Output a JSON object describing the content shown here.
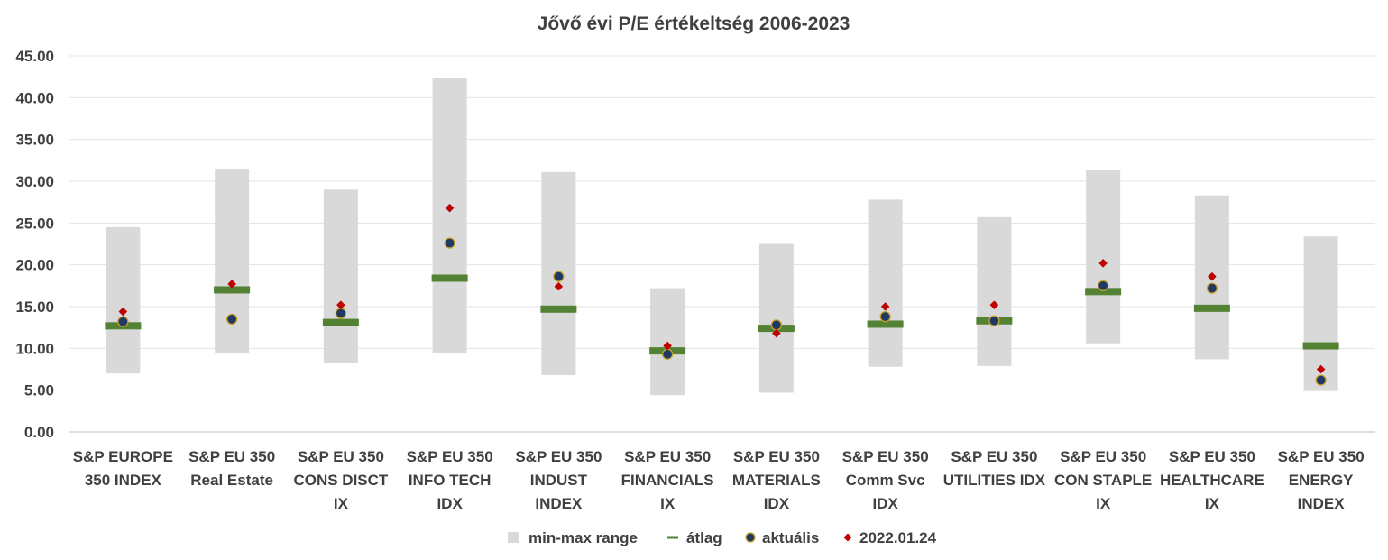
{
  "chart_data": {
    "type": "range-dot",
    "title": "Jővő évi P/E értékeltség 2006-2023",
    "ylim": [
      0,
      45
    ],
    "ytick_step": 5,
    "ytick_labels": [
      "0.00",
      "5.00",
      "10.00",
      "15.00",
      "20.00",
      "25.00",
      "30.00",
      "35.00",
      "40.00",
      "45.00"
    ],
    "grid": true,
    "legend_position": "bottom",
    "categories": [
      [
        "S&P EUROPE",
        "350 INDEX"
      ],
      [
        "S&P EU 350",
        "Real Estate"
      ],
      [
        "S&P EU 350",
        "CONS DISCT",
        "IX"
      ],
      [
        "S&P EU 350",
        "INFO TECH",
        "IDX"
      ],
      [
        "S&P EU 350",
        "INDUST",
        "INDEX"
      ],
      [
        "S&P EU 350",
        "FINANCIALS",
        "IX"
      ],
      [
        "S&P EU 350",
        "MATERIALS",
        "IDX"
      ],
      [
        "S&P EU 350",
        "Comm Svc",
        "IDX"
      ],
      [
        "S&P EU 350",
        "UTILITIES IDX"
      ],
      [
        "S&P EU 350",
        "CON STAPLE",
        "IX"
      ],
      [
        "S&P EU 350",
        "HEALTHCARE",
        "IX"
      ],
      [
        "S&P EU 350",
        "ENERGY",
        "INDEX"
      ]
    ],
    "series": [
      {
        "name": "min-max range",
        "kind": "range",
        "color": "#d9d9d9",
        "min": [
          7.0,
          9.5,
          8.3,
          9.5,
          6.8,
          4.4,
          4.7,
          7.8,
          7.9,
          10.6,
          8.7,
          4.9
        ],
        "max": [
          24.5,
          31.5,
          29.0,
          42.4,
          31.1,
          17.2,
          22.5,
          27.8,
          25.7,
          31.4,
          28.3,
          23.4
        ]
      },
      {
        "name": "átlag",
        "kind": "dash",
        "color": "#548235",
        "values": [
          12.7,
          17.0,
          13.1,
          18.4,
          14.7,
          9.7,
          12.4,
          12.9,
          13.3,
          16.8,
          14.8,
          10.3
        ]
      },
      {
        "name": "aktuális",
        "kind": "circle",
        "color": "#1f3864",
        "stroke": "#c9a227",
        "values": [
          13.2,
          13.5,
          14.2,
          22.6,
          18.6,
          9.3,
          12.8,
          13.8,
          13.3,
          17.5,
          17.2,
          6.2
        ]
      },
      {
        "name": "2022.01.24",
        "kind": "diamond",
        "color": "#c00000",
        "values": [
          14.4,
          17.7,
          15.2,
          26.8,
          17.4,
          10.3,
          11.8,
          15.0,
          15.2,
          20.2,
          18.6,
          7.5
        ]
      }
    ]
  }
}
